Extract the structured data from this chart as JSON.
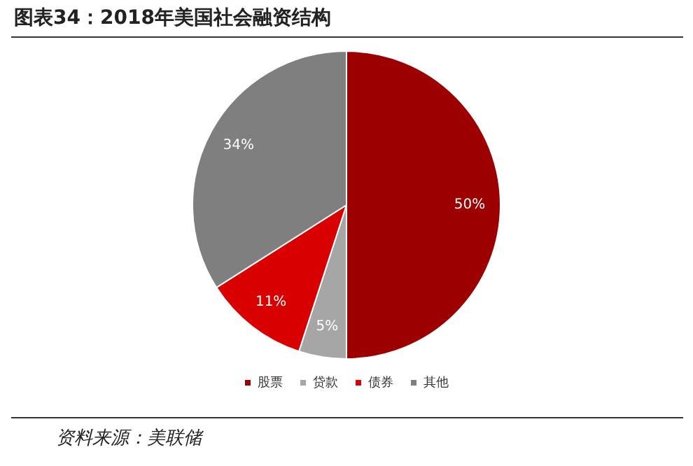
{
  "chart_data": {
    "type": "pie",
    "title": "图表34：2018年美国社会融资结构",
    "categories": [
      "股票",
      "贷款",
      "债券",
      "其他"
    ],
    "values": [
      50,
      5,
      11,
      34
    ],
    "colors": [
      "#9c0000",
      "#a6a6a6",
      "#d80000",
      "#7f7f7f"
    ],
    "value_labels": [
      "50%",
      "5%",
      "11%",
      "34%"
    ],
    "legend": "bottom",
    "annotations": [
      "资料来源：美联储"
    ]
  }
}
